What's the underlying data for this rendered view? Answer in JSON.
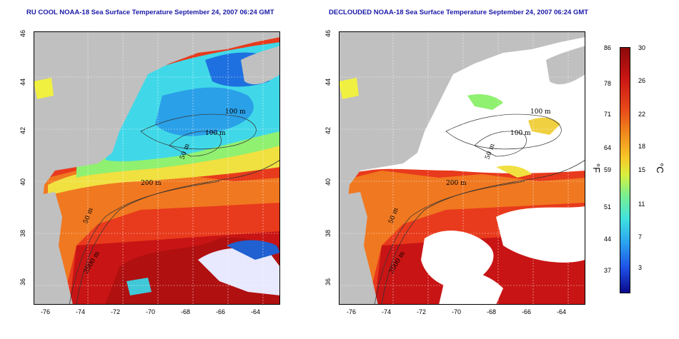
{
  "left_panel": {
    "title": "RU COOL NOAA-18 Sea Surface Temperature September 24, 2007 06:24 GMT"
  },
  "right_panel": {
    "title": "DECLOUDED NOAA-18 Sea Surface Temperature September 24, 2007 06:24 GMT"
  },
  "map": {
    "lon_ticks": [
      "-76",
      "-74",
      "-72",
      "-70",
      "-68",
      "-66",
      "-64"
    ],
    "lat_ticks": [
      "36",
      "38",
      "40",
      "42",
      "44",
      "46"
    ],
    "isobath_labels": [
      "100 m",
      "100 m",
      "50 m",
      "200 m",
      "50 m",
      "2000 m"
    ]
  },
  "colorbar": {
    "fahrenheit_ticks": [
      "86",
      "78",
      "71",
      "64",
      "59",
      "51",
      "44",
      "37"
    ],
    "celsius_ticks": [
      "30",
      "26",
      "22",
      "18",
      "15",
      "11",
      "7",
      "3"
    ],
    "unit_f": "°F",
    "unit_c": "°C",
    "colors": [
      "#0a0a8c",
      "#1e50e6",
      "#2aa0f0",
      "#40e0e0",
      "#7cf08c",
      "#d8f040",
      "#f8c828",
      "#f08a1c",
      "#e8481a",
      "#c81414",
      "#8c0a0a"
    ]
  },
  "colors": {
    "land": "#c0c0c0",
    "cloud": "#ffffff",
    "warm": "#e83a1c",
    "hot": "#c81414",
    "orange": "#f07820",
    "cool": "#40d8e8",
    "cold": "#2890e8",
    "yellow": "#f0f040",
    "green": "#90f070",
    "title": "#1a1aa8"
  }
}
